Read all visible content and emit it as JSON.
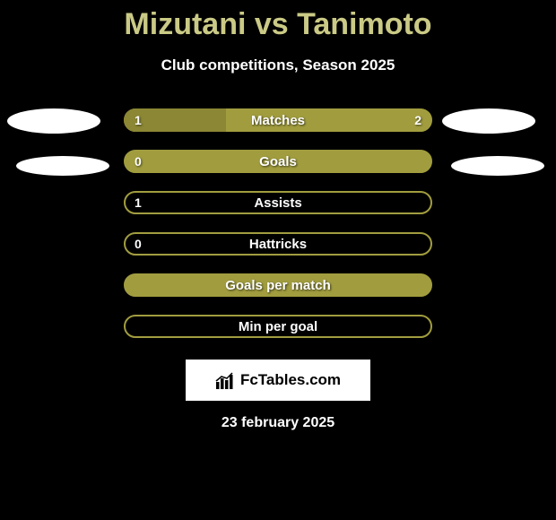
{
  "title": "Mizutani vs Tanimoto",
  "subtitle": "Club competitions, Season 2025",
  "brand": "FcTables.com",
  "date": "23 february 2025",
  "colors": {
    "background": "#000000",
    "title_color": "#caca86",
    "text_color": "#ffffff",
    "bar_color": "#a19d3f",
    "ellipse_color": "#ffffff"
  },
  "stats": {
    "rows": [
      {
        "label": "Matches",
        "left": "1",
        "right": "2",
        "left_pct": 33,
        "fill_pct": 100
      },
      {
        "label": "Goals",
        "left": "0",
        "right": "",
        "left_pct": 0,
        "fill_pct": 100
      },
      {
        "label": "Assists",
        "left": "1",
        "right": "",
        "left_pct": 0,
        "fill_pct": 0
      },
      {
        "label": "Hattricks",
        "left": "0",
        "right": "",
        "left_pct": 0,
        "fill_pct": 0
      },
      {
        "label": "Goals per match",
        "left": "",
        "right": "",
        "left_pct": 0,
        "fill_pct": 100
      },
      {
        "label": "Min per goal",
        "left": "",
        "right": "",
        "left_pct": 0,
        "fill_pct": 0
      }
    ]
  }
}
